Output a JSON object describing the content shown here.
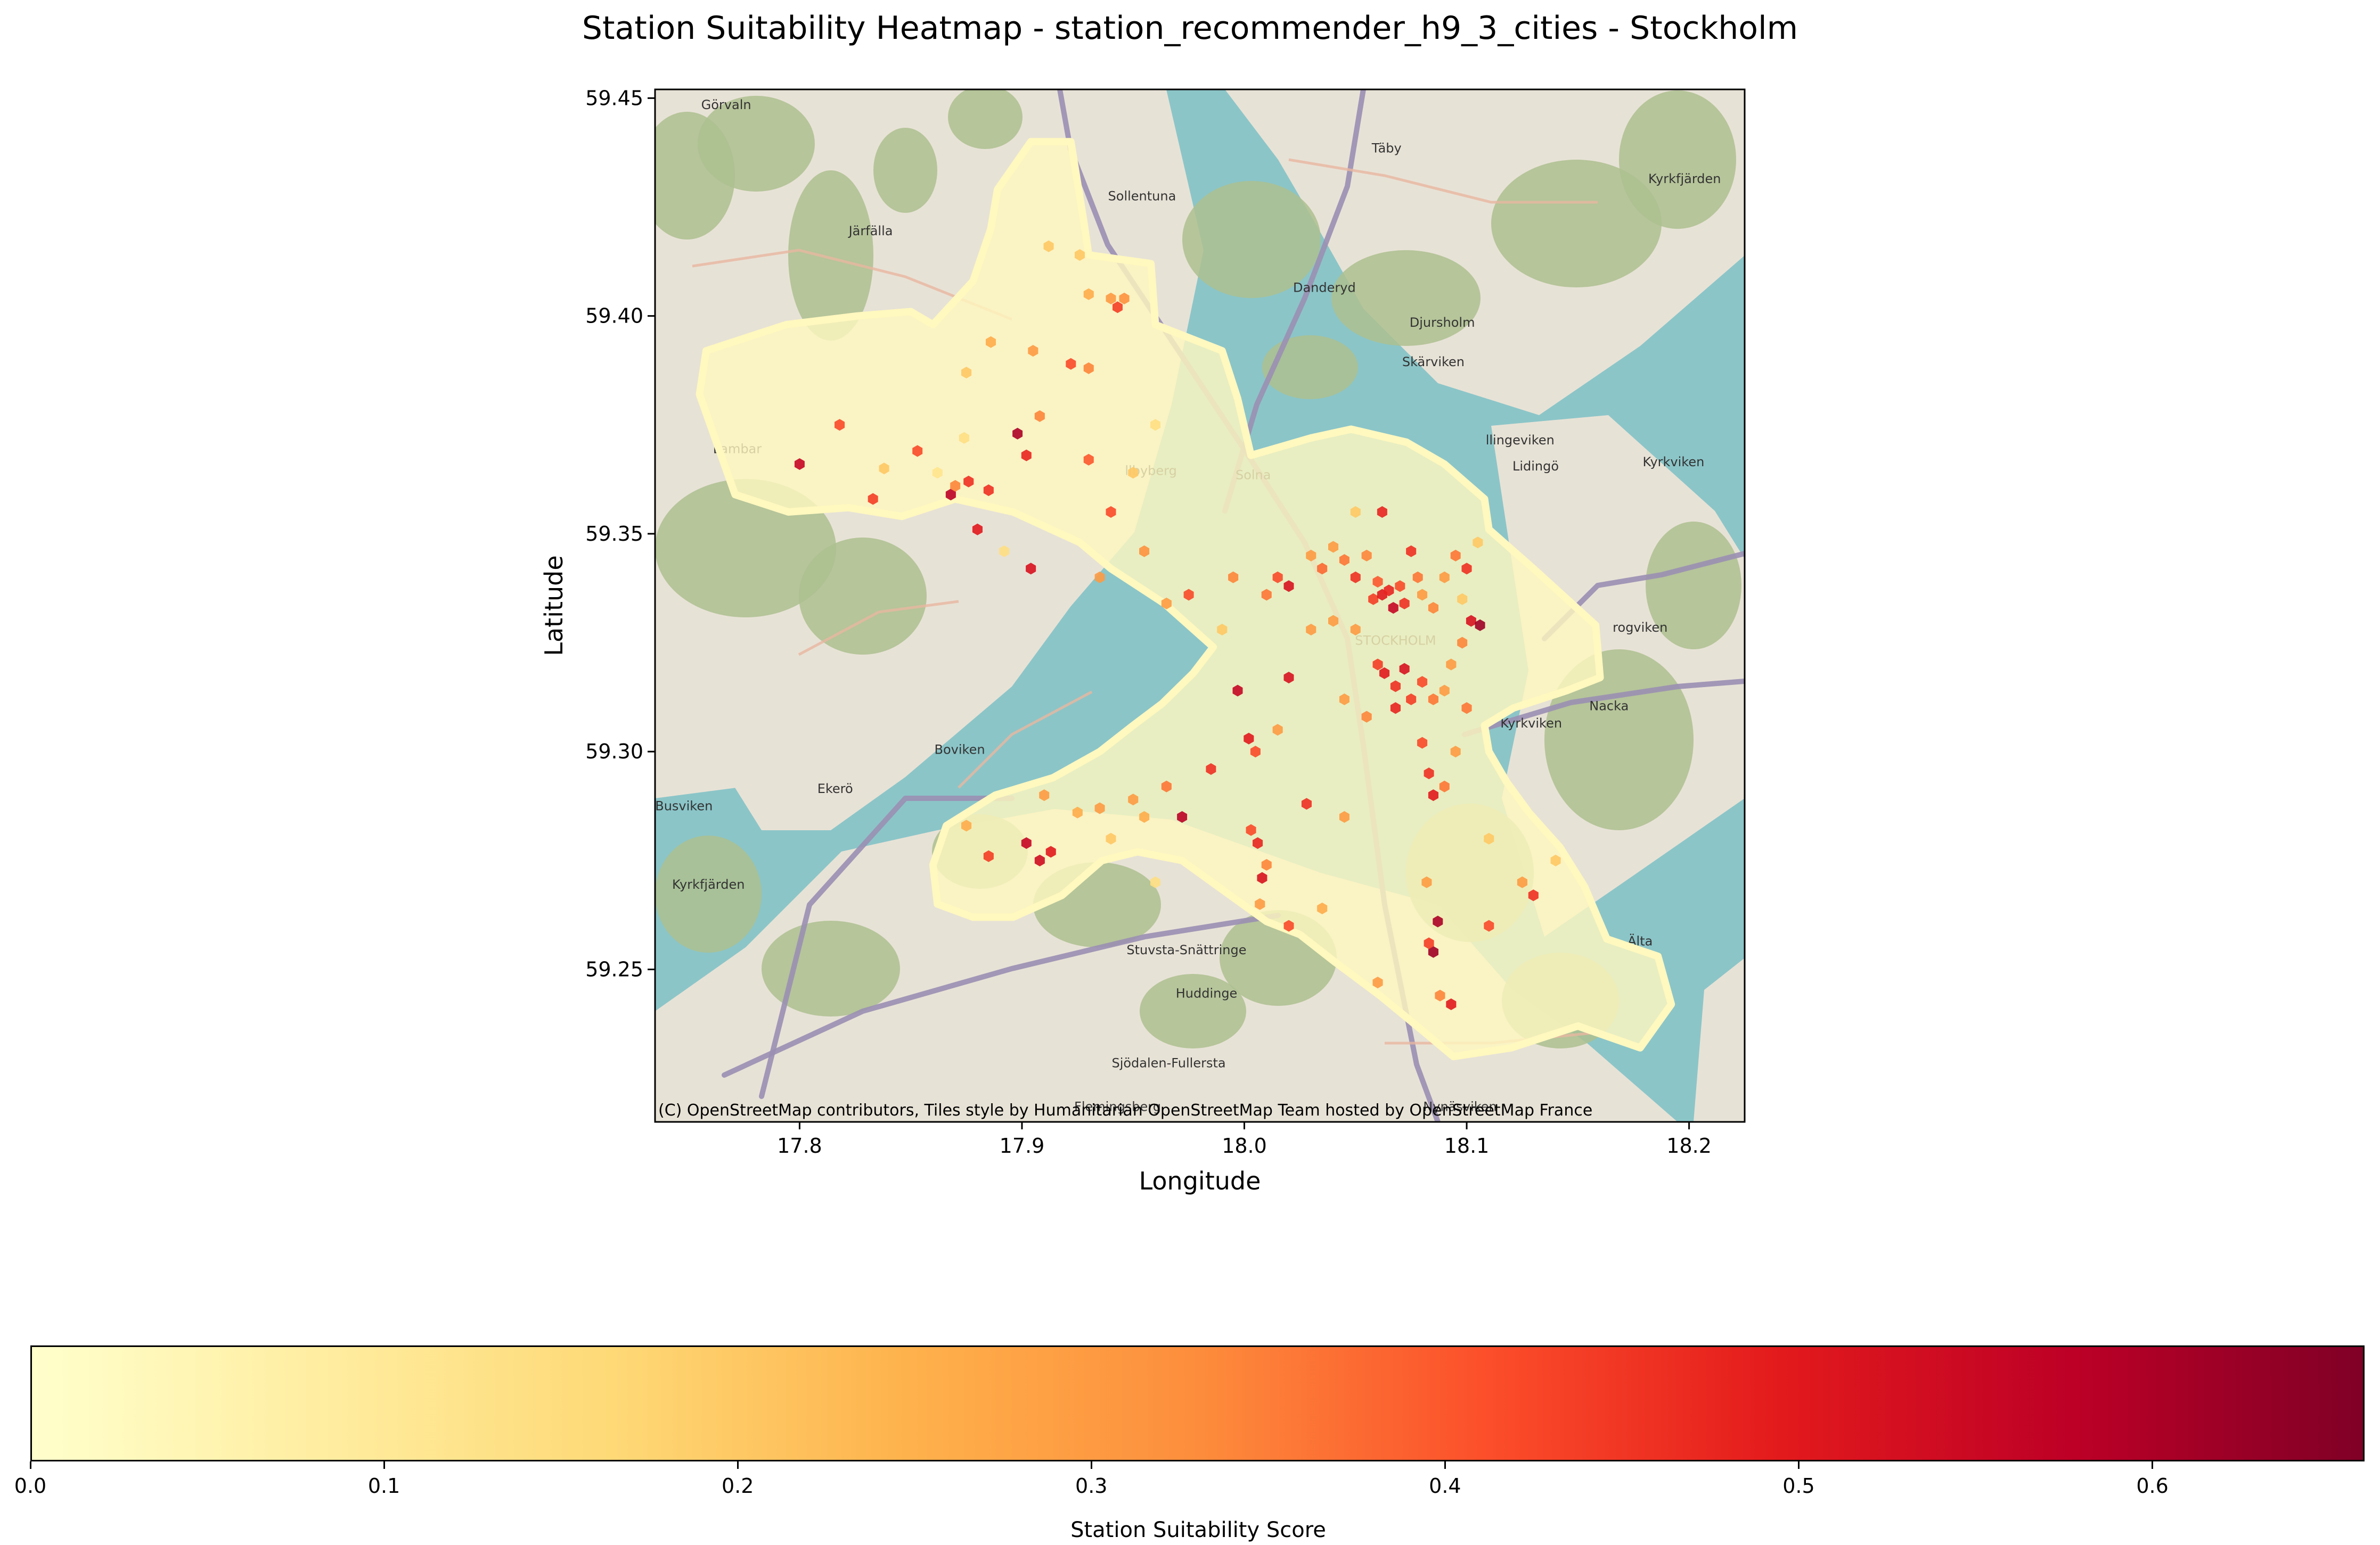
{
  "title": "Station Suitability Heatmap - station_recommender_h9_3_cities - Stockholm",
  "axes": {
    "xlabel": "Longitude",
    "ylabel": "Latitude",
    "xlim": [
      17.735,
      18.225
    ],
    "ylim": [
      59.215,
      59.452
    ],
    "xticks": [
      "17.8",
      "17.9",
      "18.0",
      "18.1",
      "18.2"
    ],
    "yticks": [
      "59.25",
      "59.30",
      "59.35",
      "59.40",
      "59.45"
    ]
  },
  "attribution": "(C) OpenStreetMap contributors, Tiles style by Humanitarian OpenStreetMap Team hosted by OpenStreetMap France",
  "place_labels": [
    {
      "name": "Görvaln",
      "lon": 17.767,
      "lat": 59.4475
    },
    {
      "name": "Sollentuna",
      "lon": 17.954,
      "lat": 59.4265
    },
    {
      "name": "Täby",
      "lon": 18.064,
      "lat": 59.4375
    },
    {
      "name": "Järfälla",
      "lon": 17.832,
      "lat": 59.4185
    },
    {
      "name": "Kyrkfjärden",
      "lon": 18.198,
      "lat": 59.4305
    },
    {
      "name": "Danderyd",
      "lon": 18.036,
      "lat": 59.4055
    },
    {
      "name": "Djursholm",
      "lon": 18.089,
      "lat": 59.3975
    },
    {
      "name": "Skärviken",
      "lon": 18.085,
      "lat": 59.3885
    },
    {
      "name": "Lambar",
      "lon": 17.772,
      "lat": 59.3685
    },
    {
      "name": "llbyberg",
      "lon": 17.958,
      "lat": 59.3635
    },
    {
      "name": "Solna",
      "lon": 18.004,
      "lat": 59.3625
    },
    {
      "name": "llingeviken",
      "lon": 18.124,
      "lat": 59.3705
    },
    {
      "name": "Lidingö",
      "lon": 18.131,
      "lat": 59.3645
    },
    {
      "name": "Kyrkviken",
      "lon": 18.193,
      "lat": 59.3655
    },
    {
      "name": "STOCKHOLM",
      "lon": 18.068,
      "lat": 59.3245
    },
    {
      "name": "rogviken",
      "lon": 18.178,
      "lat": 59.3275
    },
    {
      "name": "Nacka",
      "lon": 18.164,
      "lat": 59.3095
    },
    {
      "name": "Kyrkviken",
      "lon": 18.129,
      "lat": 59.3055
    },
    {
      "name": "Boviken",
      "lon": 17.872,
      "lat": 59.2995
    },
    {
      "name": "Ekerö",
      "lon": 17.816,
      "lat": 59.2905
    },
    {
      "name": "Busviken",
      "lon": 17.748,
      "lat": 59.2865
    },
    {
      "name": "Kyrkfjärden",
      "lon": 17.759,
      "lat": 59.2685
    },
    {
      "name": "Älta",
      "lon": 18.178,
      "lat": 59.2555
    },
    {
      "name": "Stuvsta-Snättringe",
      "lon": 17.974,
      "lat": 59.2535
    },
    {
      "name": "Huddinge",
      "lon": 17.983,
      "lat": 59.2435
    },
    {
      "name": "Sjödalen-Fullersta",
      "lon": 17.966,
      "lat": 59.2275
    },
    {
      "name": "Flemingsberg",
      "lon": 17.943,
      "lat": 59.2175
    },
    {
      "name": "Nynäsviken",
      "lon": 18.097,
      "lat": 59.2175
    }
  ],
  "colorbar": {
    "label": "Station Suitability Score",
    "min": 0.0,
    "max": 0.66,
    "ticks": [
      "0.0",
      "0.1",
      "0.2",
      "0.3",
      "0.4",
      "0.5",
      "0.6"
    ],
    "colormap": "YlOrRd"
  },
  "colors": {
    "water": "#8bc5c8",
    "land": "#e7e2d6",
    "forest": "#adbf8f",
    "major_road": "#9a8fb3",
    "minor_road": "#e8b6a0",
    "hex_base": "#fff8bf"
  },
  "region_polygon": [
    [
      17.889,
      59.429
    ],
    [
      17.904,
      59.44
    ],
    [
      17.922,
      59.44
    ],
    [
      17.928,
      59.421
    ],
    [
      17.93,
      59.414
    ],
    [
      17.958,
      59.412
    ],
    [
      17.96,
      59.398
    ],
    [
      17.99,
      59.392
    ],
    [
      17.997,
      59.381
    ],
    [
      18.003,
      59.368
    ],
    [
      18.03,
      59.372
    ],
    [
      18.048,
      59.374
    ],
    [
      18.073,
      59.371
    ],
    [
      18.09,
      59.366
    ],
    [
      18.108,
      59.358
    ],
    [
      18.11,
      59.351
    ],
    [
      18.13,
      59.342
    ],
    [
      18.158,
      59.329
    ],
    [
      18.16,
      59.317
    ],
    [
      18.145,
      59.314
    ],
    [
      18.121,
      59.31
    ],
    [
      18.108,
      59.306
    ],
    [
      18.11,
      59.3
    ],
    [
      18.118,
      59.293
    ],
    [
      18.128,
      59.286
    ],
    [
      18.142,
      59.278
    ],
    [
      18.153,
      59.269
    ],
    [
      18.163,
      59.257
    ],
    [
      18.186,
      59.253
    ],
    [
      18.192,
      59.242
    ],
    [
      18.178,
      59.232
    ],
    [
      18.15,
      59.237
    ],
    [
      18.12,
      59.232
    ],
    [
      18.094,
      59.23
    ],
    [
      18.08,
      59.236
    ],
    [
      18.061,
      59.244
    ],
    [
      18.04,
      59.252
    ],
    [
      18.025,
      59.258
    ],
    [
      18.01,
      59.261
    ],
    [
      17.991,
      59.268
    ],
    [
      17.972,
      59.275
    ],
    [
      17.952,
      59.277
    ],
    [
      17.936,
      59.275
    ],
    [
      17.918,
      59.267
    ],
    [
      17.896,
      59.262
    ],
    [
      17.878,
      59.262
    ],
    [
      17.862,
      59.265
    ],
    [
      17.86,
      59.274
    ],
    [
      17.866,
      59.283
    ],
    [
      17.888,
      59.29
    ],
    [
      17.914,
      59.294
    ],
    [
      17.935,
      59.3
    ],
    [
      17.95,
      59.306
    ],
    [
      17.963,
      59.311
    ],
    [
      17.977,
      59.318
    ],
    [
      17.986,
      59.324
    ],
    [
      17.964,
      59.334
    ],
    [
      17.94,
      59.342
    ],
    [
      17.926,
      59.348
    ],
    [
      17.896,
      59.355
    ],
    [
      17.87,
      59.358
    ],
    [
      17.846,
      59.354
    ],
    [
      17.822,
      59.356
    ],
    [
      17.795,
      59.355
    ],
    [
      17.771,
      59.359
    ],
    [
      17.755,
      59.382
    ],
    [
      17.758,
      59.392
    ],
    [
      17.794,
      59.398
    ],
    [
      17.826,
      59.4
    ],
    [
      17.85,
      59.401
    ],
    [
      17.86,
      59.398
    ],
    [
      17.878,
      59.408
    ],
    [
      17.886,
      59.42
    ]
  ],
  "stations": [
    {
      "lon": 17.8,
      "lat": 59.366,
      "score": 0.56
    },
    {
      "lon": 17.818,
      "lat": 59.375,
      "score": 0.42
    },
    {
      "lon": 17.833,
      "lat": 59.358,
      "score": 0.44
    },
    {
      "lon": 17.838,
      "lat": 59.365,
      "score": 0.2
    },
    {
      "lon": 17.853,
      "lat": 59.369,
      "score": 0.42
    },
    {
      "lon": 17.862,
      "lat": 59.364,
      "score": 0.12
    },
    {
      "lon": 17.868,
      "lat": 59.359,
      "score": 0.58
    },
    {
      "lon": 17.87,
      "lat": 59.361,
      "score": 0.34
    },
    {
      "lon": 17.876,
      "lat": 59.362,
      "score": 0.46
    },
    {
      "lon": 17.88,
      "lat": 59.351,
      "score": 0.5
    },
    {
      "lon": 17.885,
      "lat": 59.36,
      "score": 0.46
    },
    {
      "lon": 17.874,
      "lat": 59.372,
      "score": 0.14
    },
    {
      "lon": 17.875,
      "lat": 59.387,
      "score": 0.2
    },
    {
      "lon": 17.886,
      "lat": 59.394,
      "score": 0.26
    },
    {
      "lon": 17.898,
      "lat": 59.373,
      "score": 0.6
    },
    {
      "lon": 17.902,
      "lat": 59.368,
      "score": 0.48
    },
    {
      "lon": 17.904,
      "lat": 59.342,
      "score": 0.52
    },
    {
      "lon": 17.905,
      "lat": 59.392,
      "score": 0.3
    },
    {
      "lon": 17.908,
      "lat": 59.377,
      "score": 0.34
    },
    {
      "lon": 17.912,
      "lat": 59.416,
      "score": 0.2
    },
    {
      "lon": 17.922,
      "lat": 59.389,
      "score": 0.42
    },
    {
      "lon": 17.926,
      "lat": 59.414,
      "score": 0.2
    },
    {
      "lon": 17.93,
      "lat": 59.367,
      "score": 0.4
    },
    {
      "lon": 17.93,
      "lat": 59.405,
      "score": 0.26
    },
    {
      "lon": 17.94,
      "lat": 59.404,
      "score": 0.3
    },
    {
      "lon": 17.943,
      "lat": 59.402,
      "score": 0.44
    },
    {
      "lon": 17.946,
      "lat": 59.404,
      "score": 0.32
    },
    {
      "lon": 17.93,
      "lat": 59.388,
      "score": 0.34
    },
    {
      "lon": 17.94,
      "lat": 59.355,
      "score": 0.42
    },
    {
      "lon": 17.955,
      "lat": 59.346,
      "score": 0.32
    },
    {
      "lon": 17.935,
      "lat": 59.34,
      "score": 0.3
    },
    {
      "lon": 17.965,
      "lat": 59.334,
      "score": 0.3
    },
    {
      "lon": 17.975,
      "lat": 59.336,
      "score": 0.42
    },
    {
      "lon": 17.995,
      "lat": 59.34,
      "score": 0.34
    },
    {
      "lon": 18.01,
      "lat": 59.336,
      "score": 0.36
    },
    {
      "lon": 18.015,
      "lat": 59.34,
      "score": 0.42
    },
    {
      "lon": 18.02,
      "lat": 59.338,
      "score": 0.52
    },
    {
      "lon": 18.03,
      "lat": 59.345,
      "score": 0.3
    },
    {
      "lon": 18.035,
      "lat": 59.342,
      "score": 0.38
    },
    {
      "lon": 18.04,
      "lat": 59.347,
      "score": 0.3
    },
    {
      "lon": 18.045,
      "lat": 59.344,
      "score": 0.36
    },
    {
      "lon": 18.05,
      "lat": 59.34,
      "score": 0.46
    },
    {
      "lon": 18.055,
      "lat": 59.345,
      "score": 0.34
    },
    {
      "lon": 18.058,
      "lat": 59.335,
      "score": 0.44
    },
    {
      "lon": 18.06,
      "lat": 59.339,
      "score": 0.4
    },
    {
      "lon": 18.062,
      "lat": 59.336,
      "score": 0.5
    },
    {
      "lon": 18.065,
      "lat": 59.337,
      "score": 0.48
    },
    {
      "lon": 18.067,
      "lat": 59.333,
      "score": 0.56
    },
    {
      "lon": 18.07,
      "lat": 59.338,
      "score": 0.42
    },
    {
      "lon": 18.072,
      "lat": 59.334,
      "score": 0.46
    },
    {
      "lon": 18.075,
      "lat": 59.346,
      "score": 0.46
    },
    {
      "lon": 18.078,
      "lat": 59.34,
      "score": 0.36
    },
    {
      "lon": 18.08,
      "lat": 59.336,
      "score": 0.3
    },
    {
      "lon": 18.085,
      "lat": 59.333,
      "score": 0.34
    },
    {
      "lon": 18.09,
      "lat": 59.34,
      "score": 0.3
    },
    {
      "lon": 18.095,
      "lat": 59.345,
      "score": 0.36
    },
    {
      "lon": 18.1,
      "lat": 59.342,
      "score": 0.46
    },
    {
      "lon": 18.102,
      "lat": 59.33,
      "score": 0.52
    },
    {
      "lon": 18.106,
      "lat": 59.329,
      "score": 0.62
    },
    {
      "lon": 18.098,
      "lat": 59.325,
      "score": 0.34
    },
    {
      "lon": 18.062,
      "lat": 59.355,
      "score": 0.48
    },
    {
      "lon": 18.05,
      "lat": 59.328,
      "score": 0.3
    },
    {
      "lon": 18.06,
      "lat": 59.32,
      "score": 0.44
    },
    {
      "lon": 18.063,
      "lat": 59.318,
      "score": 0.5
    },
    {
      "lon": 18.068,
      "lat": 59.315,
      "score": 0.46
    },
    {
      "lon": 18.072,
      "lat": 59.319,
      "score": 0.52
    },
    {
      "lon": 18.075,
      "lat": 59.312,
      "score": 0.44
    },
    {
      "lon": 18.08,
      "lat": 59.316,
      "score": 0.42
    },
    {
      "lon": 18.085,
      "lat": 59.312,
      "score": 0.36
    },
    {
      "lon": 18.09,
      "lat": 59.314,
      "score": 0.3
    },
    {
      "lon": 18.068,
      "lat": 59.31,
      "score": 0.48
    },
    {
      "lon": 18.055,
      "lat": 59.308,
      "score": 0.34
    },
    {
      "lon": 18.045,
      "lat": 59.312,
      "score": 0.3
    },
    {
      "lon": 18.02,
      "lat": 59.317,
      "score": 0.52
    },
    {
      "lon": 17.997,
      "lat": 59.314,
      "score": 0.56
    },
    {
      "lon": 18.002,
      "lat": 59.303,
      "score": 0.5
    },
    {
      "lon": 18.005,
      "lat": 59.3,
      "score": 0.42
    },
    {
      "lon": 18.015,
      "lat": 59.305,
      "score": 0.3
    },
    {
      "lon": 17.985,
      "lat": 59.296,
      "score": 0.46
    },
    {
      "lon": 17.965,
      "lat": 59.292,
      "score": 0.36
    },
    {
      "lon": 17.95,
      "lat": 59.289,
      "score": 0.3
    },
    {
      "lon": 17.935,
      "lat": 59.287,
      "score": 0.3
    },
    {
      "lon": 17.925,
      "lat": 59.286,
      "score": 0.26
    },
    {
      "lon": 17.955,
      "lat": 59.285,
      "score": 0.26
    },
    {
      "lon": 17.972,
      "lat": 59.285,
      "score": 0.58
    },
    {
      "lon": 17.91,
      "lat": 59.29,
      "score": 0.3
    },
    {
      "lon": 17.913,
      "lat": 59.277,
      "score": 0.5
    },
    {
      "lon": 17.908,
      "lat": 59.275,
      "score": 0.54
    },
    {
      "lon": 17.902,
      "lat": 59.279,
      "score": 0.56
    },
    {
      "lon": 17.885,
      "lat": 59.276,
      "score": 0.44
    },
    {
      "lon": 17.875,
      "lat": 59.283,
      "score": 0.26
    },
    {
      "lon": 18.003,
      "lat": 59.282,
      "score": 0.42
    },
    {
      "lon": 18.006,
      "lat": 59.279,
      "score": 0.48
    },
    {
      "lon": 18.008,
      "lat": 59.271,
      "score": 0.52
    },
    {
      "lon": 18.01,
      "lat": 59.274,
      "score": 0.34
    },
    {
      "lon": 18.007,
      "lat": 59.265,
      "score": 0.3
    },
    {
      "lon": 18.02,
      "lat": 59.26,
      "score": 0.42
    },
    {
      "lon": 18.028,
      "lat": 59.288,
      "score": 0.46
    },
    {
      "lon": 18.045,
      "lat": 59.285,
      "score": 0.3
    },
    {
      "lon": 18.08,
      "lat": 59.302,
      "score": 0.42
    },
    {
      "lon": 18.083,
      "lat": 59.295,
      "score": 0.46
    },
    {
      "lon": 18.085,
      "lat": 59.29,
      "score": 0.5
    },
    {
      "lon": 18.09,
      "lat": 59.292,
      "score": 0.36
    },
    {
      "lon": 18.095,
      "lat": 59.3,
      "score": 0.3
    },
    {
      "lon": 18.1,
      "lat": 59.31,
      "score": 0.36
    },
    {
      "lon": 18.087,
      "lat": 59.261,
      "score": 0.6
    },
    {
      "lon": 18.085,
      "lat": 59.254,
      "score": 0.62
    },
    {
      "lon": 18.083,
      "lat": 59.256,
      "score": 0.44
    },
    {
      "lon": 18.082,
      "lat": 59.27,
      "score": 0.3
    },
    {
      "lon": 18.11,
      "lat": 59.26,
      "score": 0.42
    },
    {
      "lon": 18.13,
      "lat": 59.267,
      "score": 0.46
    },
    {
      "lon": 18.125,
      "lat": 59.27,
      "score": 0.3
    },
    {
      "lon": 18.093,
      "lat": 59.242,
      "score": 0.5
    },
    {
      "lon": 18.088,
      "lat": 59.244,
      "score": 0.34
    },
    {
      "lon": 18.035,
      "lat": 59.264,
      "score": 0.26
    },
    {
      "lon": 18.06,
      "lat": 59.247,
      "score": 0.3
    },
    {
      "lon": 18.05,
      "lat": 59.355,
      "score": 0.2
    },
    {
      "lon": 18.04,
      "lat": 59.33,
      "score": 0.3
    },
    {
      "lon": 18.03,
      "lat": 59.328,
      "score": 0.3
    },
    {
      "lon": 18.093,
      "lat": 59.32,
      "score": 0.3
    },
    {
      "lon": 18.098,
      "lat": 59.335,
      "score": 0.2
    },
    {
      "lon": 18.105,
      "lat": 59.348,
      "score": 0.2
    },
    {
      "lon": 17.892,
      "lat": 59.346,
      "score": 0.14
    },
    {
      "lon": 17.95,
      "lat": 59.364,
      "score": 0.2
    },
    {
      "lon": 17.96,
      "lat": 59.375,
      "score": 0.14
    },
    {
      "lon": 17.99,
      "lat": 59.328,
      "score": 0.2
    },
    {
      "lon": 18.11,
      "lat": 59.28,
      "score": 0.2
    },
    {
      "lon": 18.14,
      "lat": 59.275,
      "score": 0.2
    },
    {
      "lon": 17.94,
      "lat": 59.28,
      "score": 0.2
    },
    {
      "lon": 17.96,
      "lat": 59.27,
      "score": 0.14
    }
  ]
}
